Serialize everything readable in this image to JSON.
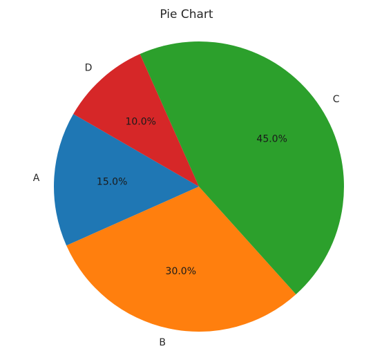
{
  "chart_data": {
    "type": "pie",
    "title": "Pie Chart",
    "categories": [
      "A",
      "B",
      "C",
      "D"
    ],
    "values": [
      15.0,
      30.0,
      45.0,
      10.0
    ],
    "pct_labels": [
      "15.0%",
      "30.0%",
      "45.0%",
      "10.0%"
    ],
    "colors": [
      "#1f77b4",
      "#ff7f0e",
      "#2ca02c",
      "#d62728"
    ],
    "start_angle_deg": 150,
    "direction": "counterclockwise",
    "legend": false
  }
}
